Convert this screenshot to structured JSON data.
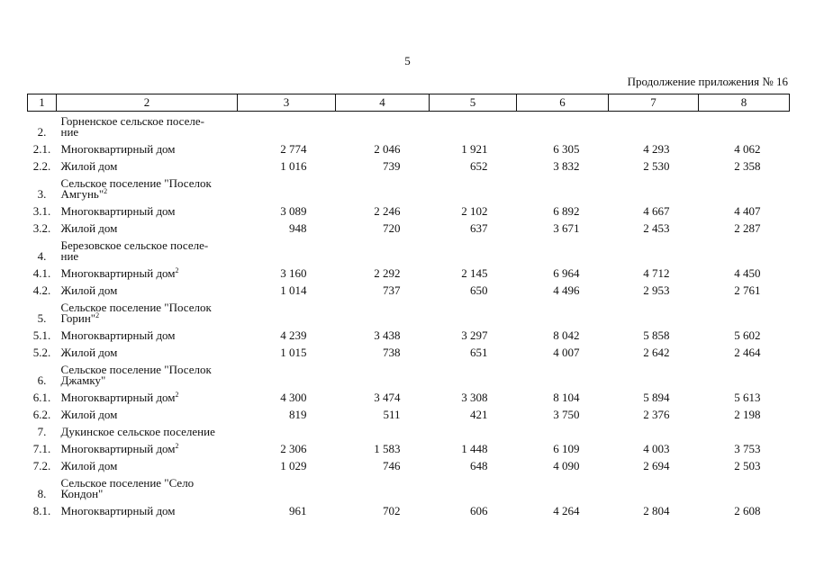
{
  "page_number": "5",
  "caption": "Продолжение приложения № 16",
  "table": {
    "header": [
      "1",
      "2",
      "3",
      "4",
      "5",
      "6",
      "7",
      "8"
    ],
    "rows": [
      {
        "num": "2.",
        "name": [
          "Горненское сельское поселе-",
          "ние"
        ]
      },
      {
        "num": "2.1.",
        "name": [
          "Многоквартирный дом"
        ],
        "values": [
          "2 774",
          "2 046",
          "1 921",
          "6 305",
          "4 293",
          "4 062"
        ]
      },
      {
        "num": "2.2.",
        "name": [
          "Жилой дом"
        ],
        "values": [
          "1 016",
          "739",
          "652",
          "3 832",
          "2 530",
          "2 358"
        ]
      },
      {
        "num": "3.",
        "name": [
          "Сельское поселение \"Поселок",
          "Амгунь\""
        ],
        "note": "2"
      },
      {
        "num": "3.1.",
        "name": [
          "Многоквартирный дом"
        ],
        "values": [
          "3 089",
          "2 246",
          "2 102",
          "6 892",
          "4 667",
          "4 407"
        ]
      },
      {
        "num": "3.2.",
        "name": [
          "Жилой дом"
        ],
        "values": [
          "948",
          "720",
          "637",
          "3 671",
          "2 453",
          "2 287"
        ]
      },
      {
        "num": "4.",
        "name": [
          "Березовское сельское поселе-",
          "ние"
        ]
      },
      {
        "num": "4.1.",
        "name": [
          "Многоквартирный дом"
        ],
        "note": "2",
        "values": [
          "3 160",
          "2 292",
          "2 145",
          "6 964",
          "4 712",
          "4 450"
        ]
      },
      {
        "num": "4.2.",
        "name": [
          "Жилой дом"
        ],
        "values": [
          "1 014",
          "737",
          "650",
          "4 496",
          "2 953",
          "2 761"
        ]
      },
      {
        "num": "5.",
        "name": [
          "Сельское поселение \"Поселок",
          "Горин\""
        ],
        "note": "2"
      },
      {
        "num": "5.1.",
        "name": [
          "Многоквартирный дом"
        ],
        "values": [
          "4 239",
          "3 438",
          "3 297",
          "8 042",
          "5 858",
          "5 602"
        ]
      },
      {
        "num": "5.2.",
        "name": [
          "Жилой дом"
        ],
        "values": [
          "1 015",
          "738",
          "651",
          "4 007",
          "2 642",
          "2 464"
        ]
      },
      {
        "num": "6.",
        "name": [
          "Сельское поселение \"Поселок",
          "Джамку\""
        ]
      },
      {
        "num": "6.1.",
        "name": [
          "Многоквартирный дом"
        ],
        "note": "2",
        "values": [
          "4 300",
          "3 474",
          "3 308",
          "8 104",
          "5 894",
          "5 613"
        ]
      },
      {
        "num": "6.2.",
        "name": [
          "Жилой дом"
        ],
        "values": [
          "819",
          "511",
          "421",
          "3 750",
          "2 376",
          "2 198"
        ]
      },
      {
        "num": "7.",
        "name": [
          "Дукинское сельское поселение"
        ]
      },
      {
        "num": "7.1.",
        "name": [
          "Многоквартирный дом"
        ],
        "note": "2",
        "values": [
          "2 306",
          "1 583",
          "1 448",
          "6 109",
          "4 003",
          "3 753"
        ]
      },
      {
        "num": "7.2.",
        "name": [
          "Жилой дом"
        ],
        "values": [
          "1 029",
          "746",
          "648",
          "4 090",
          "2 694",
          "2 503"
        ]
      },
      {
        "num": "8.",
        "name": [
          "Сельское поселение \"Село",
          "Кондон\""
        ]
      },
      {
        "num": "8.1.",
        "name": [
          "Многоквартирный дом"
        ],
        "values": [
          "961",
          "702",
          "606",
          "4 264",
          "2 804",
          "2 608"
        ]
      }
    ]
  }
}
